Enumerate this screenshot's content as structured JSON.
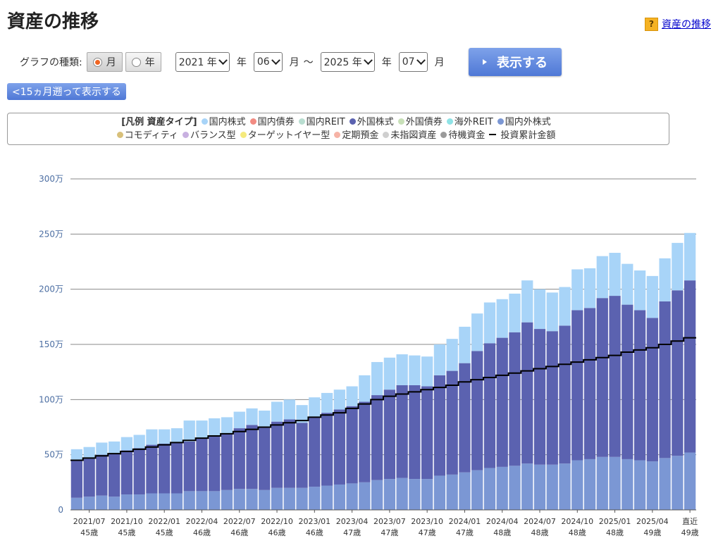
{
  "header": {
    "title": "資産の推移",
    "help_icon": "?",
    "help_link": "資産の推移"
  },
  "controls": {
    "graph_type_label": "グラフの種類:",
    "options": [
      "月",
      "年"
    ],
    "selected_option": "月",
    "from_year": "2021 年",
    "from_year_unit": "年",
    "from_month": "06",
    "from_month_unit": "月",
    "range_sep": "〜",
    "to_year": "2025 年",
    "to_year_unit": "年",
    "to_month": "07",
    "to_month_unit": "月",
    "show_button": "表示する",
    "back_button": "<15ヵ月遡って表示する"
  },
  "legend": {
    "title": "[凡例 資産タイプ]",
    "items": [
      {
        "label": "国内株式",
        "color": "#a8d4f8"
      },
      {
        "label": "国内債券",
        "color": "#f28b82"
      },
      {
        "label": "国内REIT",
        "color": "#b9ded1"
      },
      {
        "label": "外国株式",
        "color": "#5b62b0"
      },
      {
        "label": "外国債券",
        "color": "#c8e0b8"
      },
      {
        "label": "海外REIT",
        "color": "#8fe3e6"
      },
      {
        "label": "国内外株式",
        "color": "#7b97d4"
      },
      {
        "label": "コモディティ",
        "color": "#d8c07a"
      },
      {
        "label": "バランス型",
        "color": "#c8b0e0"
      },
      {
        "label": "ターゲットイヤー型",
        "color": "#f5ea7d"
      },
      {
        "label": "定期預金",
        "color": "#f6b3a6"
      },
      {
        "label": "未指図資産",
        "color": "#cfcfcf"
      },
      {
        "label": "待機資金",
        "color": "#9a9a9a"
      }
    ],
    "line_item": "投資累計金額"
  },
  "chart_data": {
    "type": "bar",
    "stacked": true,
    "ylim": [
      0,
      300
    ],
    "y_unit": "万",
    "yticks": [
      "0",
      "50万",
      "100万",
      "150万",
      "200万",
      "250万",
      "300万"
    ],
    "x_labels": [
      {
        "index": 1,
        "date": "2021/07",
        "age": "45歳"
      },
      {
        "index": 4,
        "date": "2021/10",
        "age": "45歳"
      },
      {
        "index": 7,
        "date": "2022/01",
        "age": "45歳"
      },
      {
        "index": 10,
        "date": "2022/04",
        "age": "46歳"
      },
      {
        "index": 13,
        "date": "2022/07",
        "age": "46歳"
      },
      {
        "index": 16,
        "date": "2022/10",
        "age": "46歳"
      },
      {
        "index": 19,
        "date": "2023/01",
        "age": "46歳"
      },
      {
        "index": 22,
        "date": "2023/04",
        "age": "47歳"
      },
      {
        "index": 25,
        "date": "2023/07",
        "age": "47歳"
      },
      {
        "index": 28,
        "date": "2023/10",
        "age": "47歳"
      },
      {
        "index": 31,
        "date": "2024/01",
        "age": "47歳"
      },
      {
        "index": 34,
        "date": "2024/04",
        "age": "48歳"
      },
      {
        "index": 37,
        "date": "2024/07",
        "age": "48歳"
      },
      {
        "index": 40,
        "date": "2024/10",
        "age": "48歳"
      },
      {
        "index": 43,
        "date": "2025/01",
        "age": "48歳"
      },
      {
        "index": 46,
        "date": "2025/04",
        "age": "49歳"
      },
      {
        "index": 49,
        "date": "直近",
        "age": "49歳"
      }
    ],
    "series": [
      {
        "name": "国内外株式",
        "color": "#7b97d4",
        "values": [
          11,
          12,
          13,
          12,
          14,
          14,
          15,
          15,
          15,
          17,
          17,
          17,
          18,
          19,
          19,
          18,
          20,
          20,
          20,
          21,
          22,
          23,
          24,
          25,
          27,
          28,
          29,
          28,
          28,
          31,
          32,
          34,
          36,
          38,
          39,
          40,
          42,
          41,
          41,
          42,
          45,
          46,
          48,
          48,
          46,
          45,
          44,
          47,
          49,
          52
        ]
      },
      {
        "name": "外国株式",
        "color": "#5b62b0",
        "values": [
          34,
          35,
          37,
          39,
          40,
          42,
          44,
          45,
          46,
          45,
          48,
          50,
          51,
          55,
          58,
          57,
          60,
          62,
          59,
          63,
          66,
          68,
          70,
          73,
          77,
          81,
          84,
          85,
          84,
          91,
          94,
          99,
          108,
          113,
          117,
          121,
          128,
          123,
          121,
          125,
          136,
          137,
          144,
          146,
          140,
          136,
          130,
          142,
          150,
          156
        ]
      },
      {
        "name": "国内株式",
        "color": "#a8d4f8",
        "values": [
          10,
          10,
          11,
          11,
          12,
          12,
          14,
          13,
          13,
          19,
          16,
          16,
          15,
          15,
          15,
          15,
          18,
          18,
          16,
          18,
          18,
          18,
          18,
          24,
          30,
          29,
          28,
          27,
          27,
          28,
          29,
          33,
          34,
          37,
          35,
          35,
          38,
          36,
          35,
          35,
          37,
          36,
          38,
          39,
          37,
          36,
          38,
          39,
          43,
          43
        ]
      },
      {
        "name": "投資累計金額",
        "type": "line",
        "color": "#000000",
        "values": [
          45,
          47,
          49,
          51,
          53,
          55,
          57,
          59,
          61,
          63,
          65,
          67,
          69,
          71,
          73,
          75,
          77,
          79,
          81,
          84,
          86,
          88,
          92,
          96,
          100,
          103,
          105,
          107,
          109,
          111,
          113,
          116,
          118,
          120,
          122,
          124,
          126,
          128,
          130,
          132,
          134,
          136,
          138,
          140,
          143,
          145,
          147,
          150,
          153,
          156
        ]
      }
    ]
  }
}
